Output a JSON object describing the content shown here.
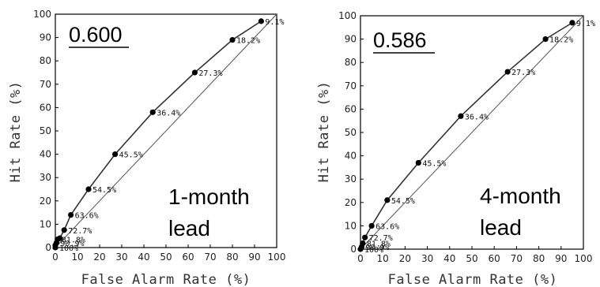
{
  "chart_data": [
    {
      "type": "line",
      "xlabel": "False Alarm Rate (%)",
      "ylabel": "Hit Rate (%)",
      "xlim": [
        0,
        100
      ],
      "ylim": [
        0,
        100
      ],
      "xticks": [
        "0",
        "10",
        "20",
        "30",
        "40",
        "50",
        "60",
        "70",
        "80",
        "90",
        "100"
      ],
      "yticks": [
        "0",
        "10",
        "20",
        "30",
        "40",
        "50",
        "60",
        "70",
        "80",
        "90",
        "100"
      ],
      "score": "0.600",
      "lead_line1": "1-month",
      "lead_line2": "lead",
      "diagonal": true,
      "x": [
        0,
        0,
        0.5,
        1,
        2,
        4,
        7,
        15,
        27,
        44,
        63,
        80,
        93
      ],
      "y": [
        0,
        1,
        2,
        3.5,
        4,
        7.5,
        14,
        25,
        40,
        58,
        75,
        89,
        97
      ],
      "labels": [
        "100%",
        "",
        "90.9%",
        "81.8%",
        "",
        "72.7%",
        "63.6%",
        "54.5%",
        "45.5%",
        "36.4%",
        "27.3%",
        "18.2%",
        "9.1%"
      ]
    },
    {
      "type": "line",
      "xlabel": "False Alarm Rate (%)",
      "ylabel": "Hit Rate (%)",
      "xlim": [
        0,
        100
      ],
      "ylim": [
        0,
        100
      ],
      "xticks": [
        "0",
        "10",
        "20",
        "30",
        "40",
        "50",
        "60",
        "70",
        "80",
        "90",
        "100"
      ],
      "yticks": [
        "0",
        "10",
        "20",
        "30",
        "40",
        "50",
        "60",
        "70",
        "80",
        "90",
        "100"
      ],
      "score": "0.586",
      "lead_line1": "4-month",
      "lead_line2": "lead",
      "diagonal": true,
      "x": [
        0,
        0.5,
        1,
        2,
        5,
        12,
        26,
        45,
        66,
        83,
        95
      ],
      "y": [
        0,
        1,
        2.5,
        5,
        10,
        21,
        37,
        57,
        76,
        90,
        97
      ],
      "labels": [
        "100%",
        "90.9%",
        "81.8%",
        "72.7%",
        "63.6%",
        "54.5%",
        "45.5%",
        "36.4%",
        "27.3%",
        "18.2%",
        "9.1%"
      ]
    }
  ]
}
